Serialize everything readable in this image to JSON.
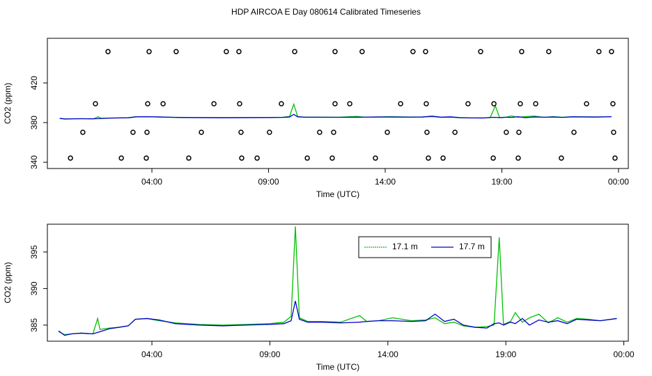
{
  "title": "HDP AIRCOA E  Day 080614  Calibrated Timeseries",
  "chart_data": [
    {
      "type": "line",
      "xlabel": "Time (UTC)",
      "ylabel": "CO2 (ppm)",
      "xlim": [
        -0.48,
        24.42
      ],
      "ylim": [
        333.7,
        465
      ],
      "xticks": [
        {
          "value": 4,
          "label": "04:00"
        },
        {
          "value": 9,
          "label": "09:00"
        },
        {
          "value": 14,
          "label": "14:00"
        },
        {
          "value": 19,
          "label": "19:00"
        },
        {
          "value": 24,
          "label": "00:00"
        }
      ],
      "yticks": [
        340,
        380,
        420
      ],
      "x": [
        0.05,
        0.3,
        0.6,
        1.0,
        1.5,
        1.7,
        1.8,
        2.2,
        2.6,
        3.0,
        3.3,
        3.8,
        4.3,
        5.0,
        6.0,
        7.0,
        8.0,
        9.0,
        9.6,
        9.9,
        10.08,
        10.25,
        10.6,
        11.2,
        12.0,
        12.8,
        13.1,
        13.6,
        14.2,
        15.0,
        15.6,
        16.0,
        16.4,
        16.8,
        17.2,
        17.7,
        18.2,
        18.5,
        18.72,
        18.9,
        19.2,
        19.4,
        19.7,
        20.0,
        20.4,
        20.8,
        21.2,
        21.6,
        22.0,
        22.5,
        23.0,
        23.7
      ],
      "series": [
        {
          "color": "#00c000",
          "values": [
            384.1,
            383.7,
            383.8,
            383.9,
            383.8,
            385.9,
            384.4,
            384.6,
            384.7,
            384.9,
            385.8,
            385.9,
            385.6,
            385.3,
            385.1,
            385.0,
            385.1,
            385.2,
            385.4,
            386.2,
            398.5,
            386.0,
            385.5,
            385.5,
            385.4,
            386.3,
            385.5,
            385.6,
            386.0,
            385.6,
            385.7,
            386.0,
            385.2,
            385.4,
            384.9,
            384.7,
            384.8,
            385.0,
            397.0,
            385.1,
            385.5,
            386.7,
            385.4,
            386.0,
            386.5,
            385.3,
            386.0,
            385.4,
            385.9,
            385.8,
            385.6,
            385.9
          ]
        },
        {
          "color": "#0000cc",
          "values": [
            384.2,
            383.6,
            383.8,
            383.9,
            383.8,
            384.0,
            384.1,
            384.5,
            384.7,
            384.9,
            385.8,
            385.9,
            385.7,
            385.2,
            385.0,
            384.9,
            385.0,
            385.1,
            385.2,
            385.6,
            388.3,
            385.8,
            385.4,
            385.4,
            385.3,
            385.4,
            385.5,
            385.6,
            385.6,
            385.5,
            385.6,
            386.5,
            385.5,
            385.8,
            385.0,
            384.7,
            384.6,
            385.2,
            385.3,
            385.0,
            385.4,
            385.2,
            385.9,
            385.0,
            385.7,
            385.4,
            385.6,
            385.2,
            385.8,
            385.7,
            385.6,
            385.9
          ]
        }
      ],
      "points": [
        {
          "color": "#000000",
          "x": [
            2.12,
            3.88,
            5.04,
            7.19,
            7.73,
            10.12,
            11.85,
            13.01,
            15.19,
            15.73,
            18.09,
            19.85,
            21.01,
            23.16,
            23.7
          ],
          "values": [
            451.6,
            451.6,
            451.6,
            451.6,
            451.6,
            451.6,
            451.6,
            451.6,
            451.6,
            451.6,
            451.6,
            451.6,
            451.6,
            451.6,
            451.6
          ]
        },
        {
          "color": "#000000",
          "x": [
            1.58,
            3.82,
            4.48,
            6.66,
            7.76,
            9.55,
            11.85,
            12.48,
            14.66,
            15.76,
            17.55,
            18.66,
            19.79,
            20.45,
            22.63,
            23.76
          ],
          "values": [
            399,
            399,
            399,
            399,
            399,
            399,
            399,
            399,
            399,
            399,
            399,
            399,
            399,
            399,
            399,
            399
          ]
        },
        {
          "color": "#000000",
          "x": [
            1.04,
            3.19,
            3.79,
            6.12,
            7.82,
            9.04,
            11.19,
            11.79,
            14.09,
            15.79,
            16.99,
            19.19,
            19.73,
            22.09,
            23.79
          ],
          "values": [
            370.2,
            370.2,
            370.2,
            370.2,
            370.2,
            370.2,
            370.2,
            370.2,
            370.2,
            370.2,
            370.2,
            370.2,
            370.2,
            370.2,
            370.2
          ]
        },
        {
          "color": "#000000",
          "x": [
            0.51,
            2.69,
            3.76,
            5.58,
            7.85,
            8.51,
            10.66,
            11.73,
            13.58,
            15.85,
            16.48,
            18.63,
            19.7,
            21.55,
            23.85
          ],
          "values": [
            344.2,
            344.2,
            344.2,
            344.2,
            344.2,
            344.2,
            344.2,
            344.2,
            344.2,
            344.2,
            344.2,
            344.2,
            344.2,
            344.2,
            344.2
          ]
        }
      ]
    },
    {
      "type": "line",
      "xlabel": "Time (UTC)",
      "ylabel": "CO2 (ppm)",
      "xlim": [
        -0.43,
        24.19
      ],
      "ylim": [
        382.8,
        398.8
      ],
      "xticks": [
        {
          "value": 4,
          "label": "04:00"
        },
        {
          "value": 9,
          "label": "09:00"
        },
        {
          "value": 14,
          "label": "14:00"
        },
        {
          "value": 19,
          "label": "19:00"
        },
        {
          "value": 24,
          "label": "00:00"
        }
      ],
      "yticks": [
        385,
        390,
        395
      ],
      "legend": "top",
      "x": [
        0.05,
        0.3,
        0.6,
        1.0,
        1.5,
        1.7,
        1.8,
        2.2,
        2.6,
        3.0,
        3.3,
        3.8,
        4.3,
        5.0,
        6.0,
        7.0,
        8.0,
        9.0,
        9.6,
        9.9,
        10.08,
        10.25,
        10.6,
        11.2,
        12.0,
        12.8,
        13.1,
        13.6,
        14.2,
        15.0,
        15.6,
        16.0,
        16.4,
        16.8,
        17.2,
        17.7,
        18.2,
        18.5,
        18.72,
        18.9,
        19.2,
        19.4,
        19.7,
        20.0,
        20.4,
        20.8,
        21.2,
        21.6,
        22.0,
        22.5,
        23.0,
        23.7
      ],
      "series": [
        {
          "name": "17.1 m",
          "color": "#00c000",
          "values": [
            384.1,
            383.7,
            383.8,
            383.9,
            383.8,
            385.9,
            384.4,
            384.6,
            384.7,
            384.9,
            385.8,
            385.9,
            385.6,
            385.3,
            385.1,
            385.0,
            385.1,
            385.2,
            385.4,
            386.2,
            398.5,
            386.0,
            385.5,
            385.5,
            385.4,
            386.3,
            385.5,
            385.6,
            386.0,
            385.6,
            385.7,
            386.0,
            385.2,
            385.4,
            384.9,
            384.7,
            384.8,
            385.0,
            397.0,
            385.1,
            385.5,
            386.7,
            385.4,
            386.0,
            386.5,
            385.3,
            386.0,
            385.4,
            385.9,
            385.8,
            385.6,
            385.9
          ]
        },
        {
          "name": "17.7 m",
          "color": "#0000cc",
          "values": [
            384.2,
            383.6,
            383.8,
            383.9,
            383.8,
            384.0,
            384.1,
            384.5,
            384.7,
            384.9,
            385.8,
            385.9,
            385.7,
            385.2,
            385.0,
            384.9,
            385.0,
            385.1,
            385.2,
            385.6,
            388.3,
            385.8,
            385.4,
            385.4,
            385.3,
            385.4,
            385.5,
            385.6,
            385.6,
            385.5,
            385.6,
            386.5,
            385.5,
            385.8,
            385.0,
            384.7,
            384.6,
            385.2,
            385.3,
            385.0,
            385.4,
            385.2,
            385.9,
            385.0,
            385.7,
            385.4,
            385.6,
            385.2,
            385.8,
            385.7,
            385.6,
            385.9
          ]
        }
      ]
    }
  ]
}
